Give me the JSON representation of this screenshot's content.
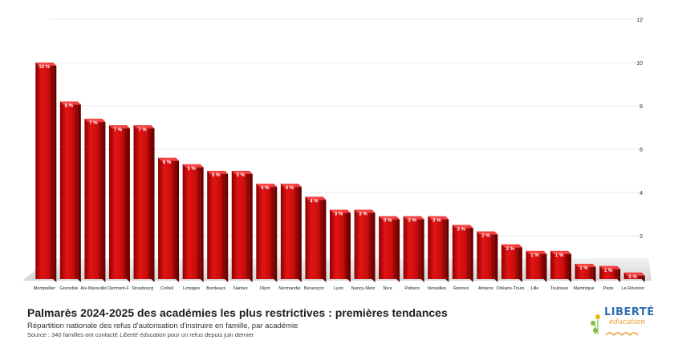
{
  "chart_data": {
    "type": "bar",
    "categories": [
      "Montpellier",
      "Grenoble",
      "Aix-Marseille",
      "Clermont-F",
      "Strasbourg",
      "Créteil",
      "Limoges",
      "Bordeaux",
      "Nantes",
      "Dijon",
      "Normandie",
      "Besançon",
      "Lyon",
      "Nancy-Metz",
      "Nice",
      "Poitiers",
      "Versailles",
      "Rennes",
      "Amiens",
      "Orléans-Tours",
      "Lille",
      "Toulouse",
      "Martinique",
      "Paris",
      "La Réunion"
    ],
    "values": [
      10,
      8.2,
      7.4,
      7.1,
      7.1,
      5.6,
      5.3,
      5.0,
      5.0,
      4.4,
      4.4,
      3.8,
      3.2,
      3.2,
      2.9,
      2.9,
      2.9,
      2.5,
      2.2,
      1.6,
      1.3,
      1.3,
      0.7,
      0.6,
      0.3
    ],
    "data_labels": [
      "10 %",
      "8 %",
      "7 %",
      "7 %",
      "7 %",
      "6 %",
      "5 %",
      "5 %",
      "5 %",
      "4 %",
      "4 %",
      "4 %",
      "3 %",
      "3 %",
      "3 %",
      "3 %",
      "3 %",
      "3 %",
      "2 %",
      "2 %",
      "1 %",
      "1 %",
      "1 %",
      "1 %",
      "0 %"
    ],
    "yticks": [
      "2",
      "4",
      "6",
      "8",
      "10",
      "12"
    ],
    "ylim": [
      0,
      12
    ],
    "grid": true,
    "bar_color": "#d41111",
    "title": "Palmarès 2024-2025 des académies les plus restrictives : premières tendances",
    "subtitle": "Répartition nationale des refus d'autorisation d'instruire en famille, par académie",
    "source_prefix": "Source : 340 familles ont contacté ",
    "source_italic": "Liberté éducation",
    "source_suffix": " pour un refus depuis juin dernier"
  },
  "logo": {
    "text": "LIBERTÉ",
    "sub": "éducation"
  }
}
